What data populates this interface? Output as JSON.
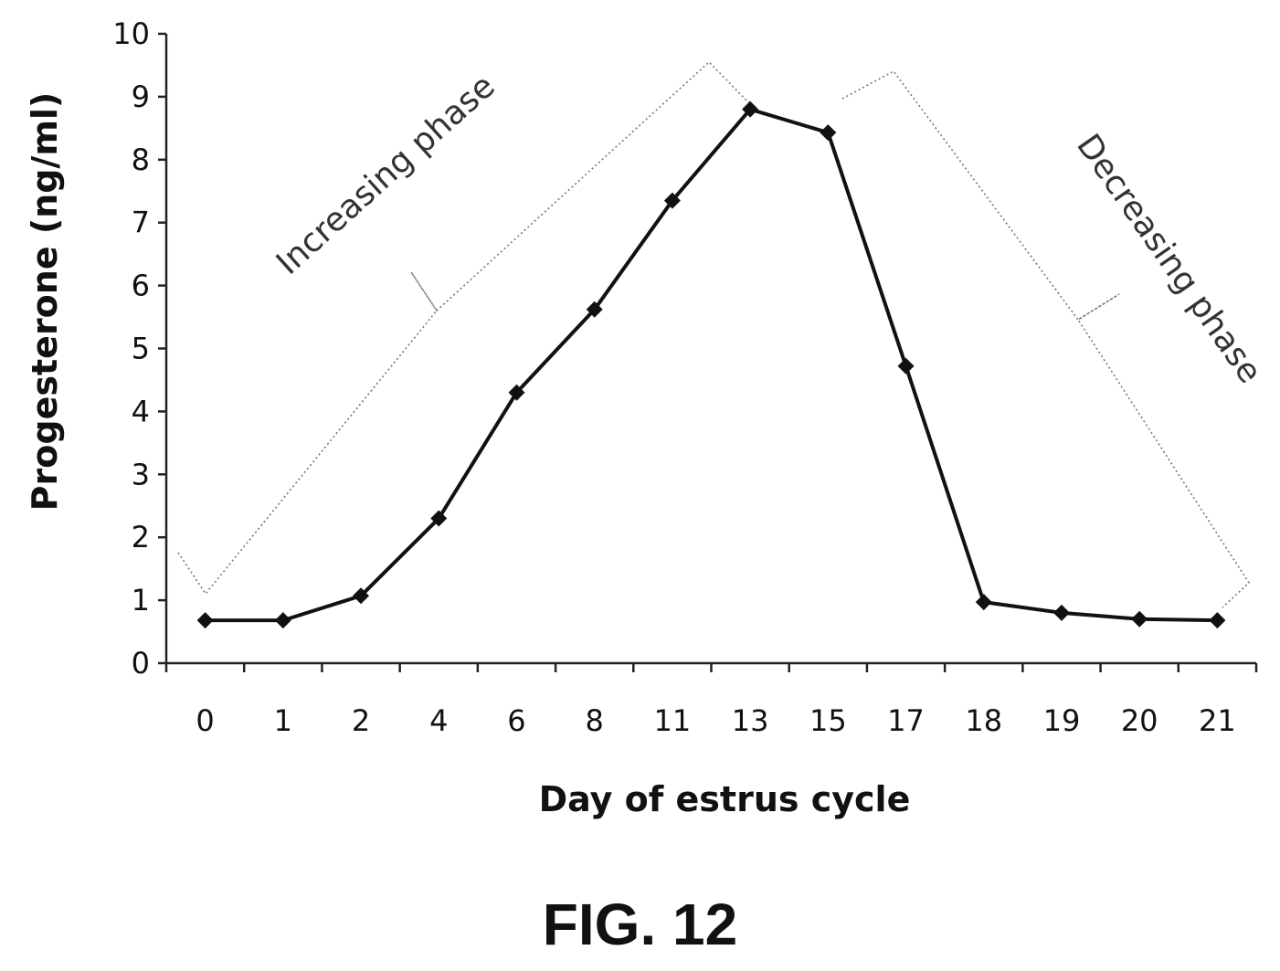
{
  "figure_label": "FIG. 12",
  "chart_data": {
    "type": "line",
    "title": "",
    "xlabel": "Day of estrus cycle",
    "ylabel": "Progesterone (ng/ml)",
    "ylim": [
      0,
      10
    ],
    "yticks": [
      0,
      1,
      2,
      3,
      4,
      5,
      6,
      7,
      8,
      9,
      10
    ],
    "categories": [
      "0",
      "1",
      "2",
      "4",
      "6",
      "8",
      "11",
      "13",
      "15",
      "17",
      "18",
      "19",
      "20",
      "21"
    ],
    "series": [
      {
        "values": [
          0.68,
          0.68,
          1.07,
          2.3,
          4.3,
          5.62,
          7.35,
          8.8,
          8.43,
          4.72,
          0.97,
          0.8,
          0.7,
          0.68
        ],
        "color": "#111111",
        "marker": "diamond"
      }
    ],
    "annotations": [
      {
        "text": "Increasing phase",
        "spans": [
          "0",
          "13"
        ]
      },
      {
        "text": "Decreasing phase",
        "spans": [
          "15",
          "21"
        ]
      }
    ],
    "grid": false,
    "legend": "none"
  }
}
